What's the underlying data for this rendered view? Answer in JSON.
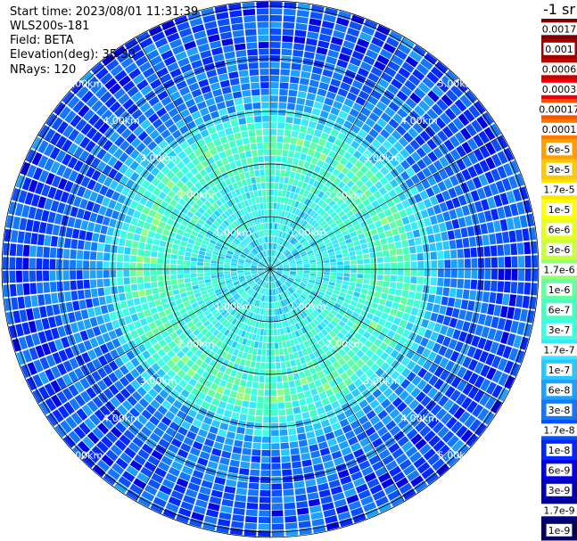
{
  "header": {
    "start_time": "Start time: 2023/08/01 11:31:39",
    "instrument": "WLS200s-181",
    "field": "Field: BETA",
    "elevation": "Elevation(deg): 35.30",
    "nrays": "NRays: 120"
  },
  "colorbar": {
    "title": "-1 sr",
    "labels": [
      "0.0017",
      "0.001",
      "0.0006",
      "0.0003",
      "0.00017",
      "0.0001",
      "6e-5",
      "3e-5",
      "1.7e-5",
      "1e-5",
      "6e-6",
      "3e-6",
      "1.7e-6",
      "1e-6",
      "6e-7",
      "3e-7",
      "1.7e-7",
      "1e-7",
      "6e-8",
      "3e-8",
      "1.7e-8",
      "1e-8",
      "6e-9",
      "3e-9",
      "1.7e-9",
      "1e-9"
    ],
    "colors": [
      "#7a0000",
      "#a00000",
      "#c80000",
      "#f00000",
      "#ff5000",
      "#ff7800",
      "#ffa000",
      "#ffc800",
      "#ffe600",
      "#ffff00",
      "#e6ff1e",
      "#c8ff3c",
      "#96ff78",
      "#64ffa0",
      "#46ffc3",
      "#3cffe6",
      "#3ce6ff",
      "#28c8ff",
      "#1ea0ff",
      "#1478ff",
      "#0a50ff",
      "#0028ff",
      "#0000e6",
      "#0000b4",
      "#00008c",
      "#000064"
    ]
  },
  "chart_data": {
    "type": "heatmap",
    "projection": "polar PPI",
    "field": "BETA",
    "unit": "-1 sr",
    "elevation_deg": 35.3,
    "nrays": 120,
    "range_rings_km": [
      1.0,
      2.0,
      3.0,
      4.0,
      5.0
    ],
    "range_ring_labels": [
      "1.00km",
      "2.00km",
      "3.00km",
      "4.00km",
      "5.00km"
    ],
    "max_range_km": 5.1,
    "radial_spokes_deg": [
      0,
      30,
      60,
      90,
      120,
      150,
      180,
      210,
      240,
      270,
      300,
      330
    ],
    "range_profile": [
      {
        "range_km": 0.5,
        "beta": 1.7e-07
      },
      {
        "range_km": 1.5,
        "beta": 3e-07
      },
      {
        "range_km": 2.5,
        "beta": 6e-07
      },
      {
        "range_km": 3.5,
        "beta": 3e-08
      },
      {
        "range_km": 4.5,
        "beta": 1.7e-08
      },
      {
        "range_km": 5.0,
        "beta": 1.7e-08
      }
    ]
  }
}
